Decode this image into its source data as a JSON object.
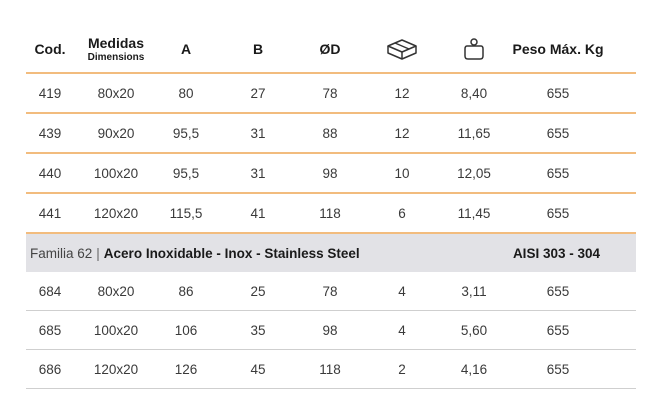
{
  "headers": {
    "cod": "Cod.",
    "medidas": "Medidas",
    "dimensions": "Dimensions",
    "a": "A",
    "b": "B",
    "od": "ØD",
    "peso": "Peso Máx. Kg",
    "icon_box": "box-icon",
    "icon_weight": "weight-icon"
  },
  "rows_group1": [
    {
      "cod": "419",
      "medidas": "80x20",
      "a": "80",
      "b": "27",
      "od": "78",
      "qty": "12",
      "weight": "8,40",
      "peso": "655"
    },
    {
      "cod": "439",
      "medidas": "90x20",
      "a": "95,5",
      "b": "31",
      "od": "88",
      "qty": "12",
      "weight": "11,65",
      "peso": "655"
    },
    {
      "cod": "440",
      "medidas": "100x20",
      "a": "95,5",
      "b": "31",
      "od": "98",
      "qty": "10",
      "weight": "12,05",
      "peso": "655"
    },
    {
      "cod": "441",
      "medidas": "120x20",
      "a": "115,5",
      "b": "41",
      "od": "118",
      "qty": "6",
      "weight": "11,45",
      "peso": "655"
    }
  ],
  "family": {
    "name": "Familia 62",
    "separator": "|",
    "description": "Acero Inoxidable - Inox - Stainless Steel",
    "grade": "AISI 303 - 304"
  },
  "rows_group2": [
    {
      "cod": "684",
      "medidas": "80x20",
      "a": "86",
      "b": "25",
      "od": "78",
      "qty": "4",
      "weight": "3,11",
      "peso": "655"
    },
    {
      "cod": "685",
      "medidas": "100x20",
      "a": "106",
      "b": "35",
      "od": "98",
      "qty": "4",
      "weight": "5,60",
      "peso": "655"
    },
    {
      "cod": "686",
      "medidas": "120x20",
      "a": "126",
      "b": "45",
      "od": "118",
      "qty": "2",
      "weight": "4,16",
      "peso": "655"
    }
  ]
}
